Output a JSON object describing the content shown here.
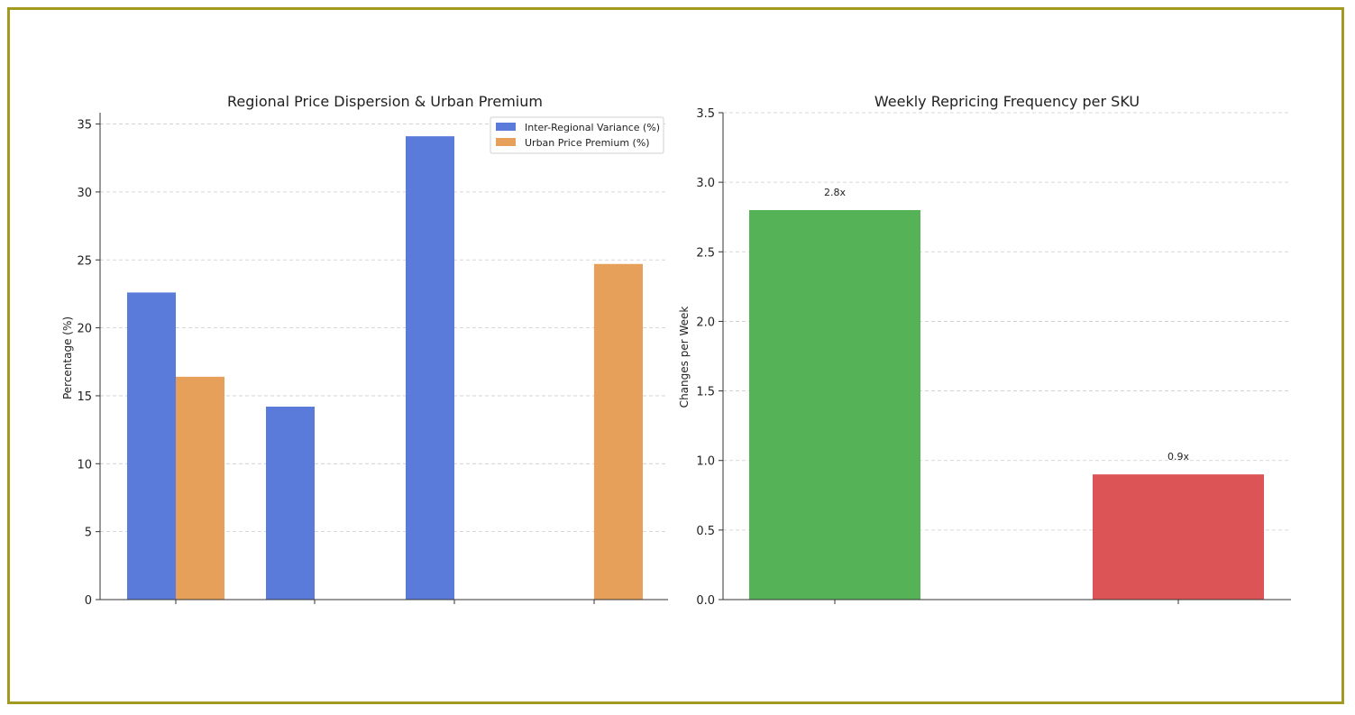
{
  "colors": {
    "frame": "#a39a22",
    "blue": "#5b7bdb",
    "orange": "#e6a05a",
    "green": "#56b257",
    "red": "#dd5457",
    "grid": "#cccccc"
  },
  "chart_data": [
    {
      "type": "bar",
      "title": "Regional Price Dispersion & Urban Premium",
      "xlabel": "",
      "ylabel": "Percentage (%)",
      "ylim": [
        0,
        36
      ],
      "yticks": [
        0,
        5,
        10,
        15,
        20,
        25,
        30,
        35
      ],
      "categories": [
        "",
        "",
        "",
        ""
      ],
      "series": [
        {
          "name": "Inter-Regional Variance (%)",
          "color": "#5b7bdb",
          "values": [
            22.6,
            14.2,
            34.1,
            null
          ]
        },
        {
          "name": "Urban Price Premium (%)",
          "color": "#e6a05a",
          "values": [
            16.4,
            null,
            null,
            24.7
          ]
        }
      ],
      "legend": "top-right",
      "grid": "y-dashed"
    },
    {
      "type": "bar",
      "title": "Weekly Repricing Frequency per SKU",
      "xlabel": "",
      "ylabel": "Changes per Week",
      "ylim": [
        0,
        3.5
      ],
      "yticks": [
        "0.0",
        "0.5",
        "1.0",
        "1.5",
        "2.0",
        "2.5",
        "3.0",
        "3.5"
      ],
      "categories": [
        "",
        ""
      ],
      "values": [
        2.8,
        0.9
      ],
      "colors": [
        "#56b257",
        "#dd5457"
      ],
      "data_labels": [
        "2.8x",
        "0.9x"
      ],
      "grid": "y-dashed"
    }
  ]
}
